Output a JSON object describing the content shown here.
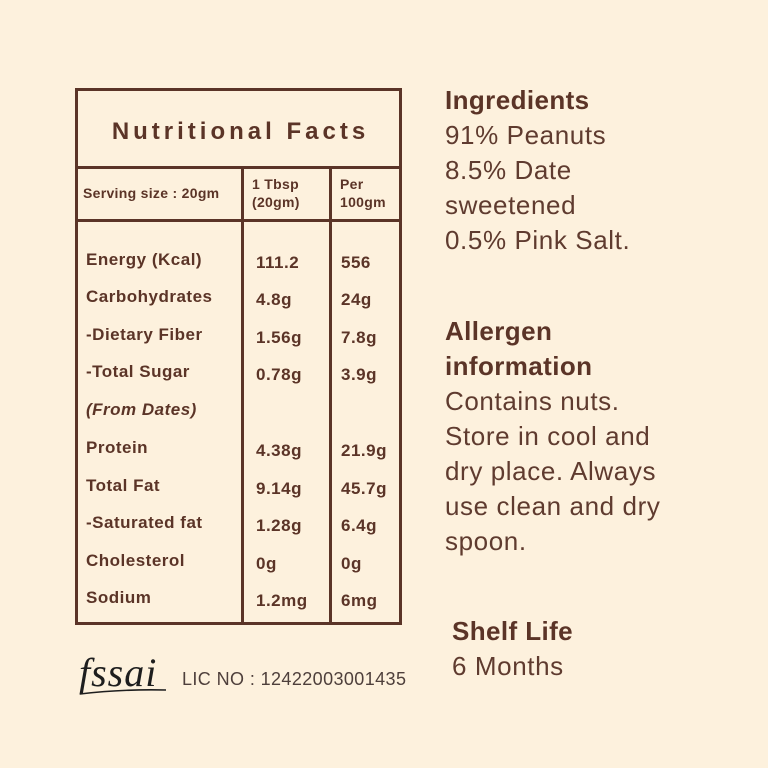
{
  "colors": {
    "background": "#FDF1DD",
    "ink": "#5B3427",
    "body_text": "#5F3B2F",
    "license_text": "#4E3F3B",
    "logo_ink": "#1E1E1E"
  },
  "nutrition_table": {
    "title": "Nutritional Facts",
    "serving_size": "Serving size : 20gm",
    "col_per_serving": [
      "1 Tbsp",
      "(20gm)"
    ],
    "col_per_100g": [
      "Per",
      "100gm"
    ],
    "rows": [
      {
        "label": "Energy (Kcal)",
        "per_serving": "111.2",
        "per_100g": "556"
      },
      {
        "label": "Carbohydrates",
        "per_serving": "4.8g",
        "per_100g": "24g"
      },
      {
        "label": "-Dietary Fiber",
        "per_serving": "1.56g",
        "per_100g": "7.8g"
      },
      {
        "label": "-Total Sugar",
        "per_serving": "0.78g",
        "per_100g": "3.9g"
      },
      {
        "label": "(From Dates)"
      },
      {
        "label": "Protein",
        "per_serving": "4.38g",
        "per_100g": "21.9g"
      },
      {
        "label": "Total Fat",
        "per_serving": "9.14g",
        "per_100g": "45.7g"
      },
      {
        "label": "-Saturated fat",
        "per_serving": "1.28g",
        "per_100g": "6.4g"
      },
      {
        "label": "Cholesterol",
        "per_serving": "0g",
        "per_100g": "0g"
      },
      {
        "label": "Sodium",
        "per_serving": "1.2mg",
        "per_100g": "6mg"
      }
    ]
  },
  "ingredients": {
    "heading": "Ingredients",
    "lines": [
      "91% Peanuts",
      "8.5% Date",
      "sweetened",
      "0.5% Pink Salt."
    ]
  },
  "allergen": {
    "heading": "Allergen information",
    "lines": [
      "Contains nuts.",
      "Store in cool and",
      "dry place. Always",
      "use clean and dry",
      "spoon."
    ]
  },
  "shelf_life": {
    "heading": "Shelf Life",
    "value": "6 Months"
  },
  "footer": {
    "logo_icon": "fssai-logo",
    "logo_text": "fssai",
    "license": "LIC NO : 12422003001435"
  }
}
